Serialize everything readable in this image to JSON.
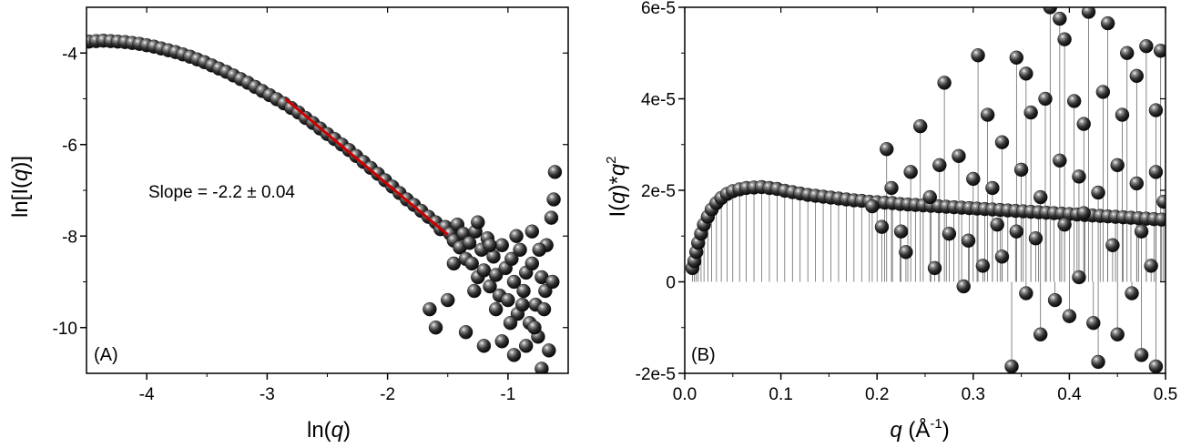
{
  "chart_data": [
    {
      "type": "scatter",
      "panel_label": "(A)",
      "xlabel_prefix": "ln(",
      "xlabel_var": "q",
      "xlabel_suffix": ")",
      "ylabel_prefix": "ln[I(",
      "ylabel_var": "q",
      "ylabel_suffix": ")]",
      "xlim": [
        -4.5,
        -0.5
      ],
      "ylim": [
        -11,
        -3
      ],
      "xticks": [
        -4,
        -3,
        -2,
        -1
      ],
      "xtick_labels": [
        "-4",
        "-3",
        "-2",
        "-1"
      ],
      "yticks": [
        -10,
        -8,
        -6,
        -4
      ],
      "ytick_labels": [
        "-10",
        "-8",
        "-6",
        "-4"
      ],
      "annotation": "Slope = -2.2 ± 0.04",
      "fit_line": {
        "slope": -2.2,
        "x": [
          -2.85,
          -1.5
        ],
        "y": [
          -5.0,
          -7.97
        ],
        "color": "#cc0000"
      },
      "marker_color": "#1a1a1a",
      "points": [
        [
          -4.48,
          -3.75
        ],
        [
          -4.42,
          -3.74
        ],
        [
          -4.36,
          -3.73
        ],
        [
          -4.3,
          -3.74
        ],
        [
          -4.24,
          -3.75
        ],
        [
          -4.18,
          -3.76
        ],
        [
          -4.12,
          -3.78
        ],
        [
          -4.06,
          -3.8
        ],
        [
          -4.0,
          -3.83
        ],
        [
          -3.94,
          -3.86
        ],
        [
          -3.88,
          -3.9
        ],
        [
          -3.82,
          -3.94
        ],
        [
          -3.76,
          -3.98
        ],
        [
          -3.7,
          -4.03
        ],
        [
          -3.64,
          -4.08
        ],
        [
          -3.58,
          -4.14
        ],
        [
          -3.52,
          -4.2
        ],
        [
          -3.46,
          -4.27
        ],
        [
          -3.4,
          -4.34
        ],
        [
          -3.34,
          -4.41
        ],
        [
          -3.28,
          -4.49
        ],
        [
          -3.22,
          -4.57
        ],
        [
          -3.16,
          -4.65
        ],
        [
          -3.1,
          -4.74
        ],
        [
          -3.04,
          -4.83
        ],
        [
          -2.98,
          -4.92
        ],
        [
          -2.92,
          -5.01
        ],
        [
          -2.86,
          -5.1
        ],
        [
          -2.8,
          -5.2
        ],
        [
          -2.74,
          -5.3
        ],
        [
          -2.68,
          -5.42
        ],
        [
          -2.62,
          -5.53
        ],
        [
          -2.56,
          -5.65
        ],
        [
          -2.5,
          -5.77
        ],
        [
          -2.44,
          -5.88
        ],
        [
          -2.38,
          -6.0
        ],
        [
          -2.32,
          -6.12
        ],
        [
          -2.26,
          -6.25
        ],
        [
          -2.2,
          -6.38
        ],
        [
          -2.14,
          -6.51
        ],
        [
          -2.08,
          -6.64
        ],
        [
          -2.02,
          -6.78
        ],
        [
          -1.96,
          -6.92
        ],
        [
          -1.9,
          -7.06
        ],
        [
          -1.84,
          -7.2
        ],
        [
          -1.78,
          -7.32
        ],
        [
          -1.72,
          -7.45
        ],
        [
          -1.66,
          -7.58
        ],
        [
          -1.6,
          -7.7
        ],
        [
          -1.56,
          -7.85
        ],
        [
          -1.52,
          -7.8
        ],
        [
          -1.48,
          -7.95
        ],
        [
          -1.45,
          -8.1
        ],
        [
          -1.42,
          -7.75
        ],
        [
          -1.4,
          -8.25
        ],
        [
          -1.37,
          -7.95
        ],
        [
          -1.35,
          -8.5
        ],
        [
          -1.32,
          -8.15
        ],
        [
          -1.3,
          -8.6
        ],
        [
          -1.27,
          -7.9
        ],
        [
          -1.25,
          -8.9
        ],
        [
          -1.22,
          -8.3
        ],
        [
          -1.2,
          -8.75
        ],
        [
          -1.17,
          -8.05
        ],
        [
          -1.15,
          -9.1
        ],
        [
          -1.12,
          -8.45
        ],
        [
          -1.1,
          -8.85
        ],
        [
          -1.07,
          -9.3
        ],
        [
          -1.05,
          -8.2
        ],
        [
          -1.02,
          -8.7
        ],
        [
          -1.0,
          -9.4
        ],
        [
          -0.97,
          -8.5
        ],
        [
          -0.95,
          -9.0
        ],
        [
          -0.92,
          -9.7
        ],
        [
          -0.9,
          -8.3
        ],
        [
          -0.87,
          -9.2
        ],
        [
          -0.85,
          -8.8
        ],
        [
          -0.82,
          -9.9
        ],
        [
          -0.8,
          -8.6
        ],
        [
          -0.77,
          -9.5
        ],
        [
          -0.75,
          -10.2
        ],
        [
          -0.72,
          -8.9
        ],
        [
          -0.7,
          -9.6
        ],
        [
          -0.68,
          -8.2
        ],
        [
          -0.66,
          -10.5
        ],
        [
          -0.64,
          -7.6
        ],
        [
          -0.62,
          -7.2
        ],
        [
          -0.61,
          -6.6
        ],
        [
          -1.6,
          -10.0
        ],
        [
          -1.5,
          -9.4
        ],
        [
          -1.35,
          -10.1
        ],
        [
          -1.2,
          -10.4
        ],
        [
          -1.05,
          -10.3
        ],
        [
          -0.95,
          -10.6
        ],
        [
          -0.85,
          -10.4
        ],
        [
          -0.72,
          -10.9
        ],
        [
          -1.65,
          -9.6
        ],
        [
          -1.45,
          -8.6
        ],
        [
          -1.28,
          -9.2
        ],
        [
          -1.1,
          -9.6
        ],
        [
          -0.98,
          -9.9
        ],
        [
          -0.88,
          -9.5
        ],
        [
          -0.78,
          -10.0
        ],
        [
          -0.69,
          -9.2
        ],
        [
          -1.25,
          -7.7
        ],
        [
          -1.15,
          -8.2
        ],
        [
          -0.93,
          -8.0
        ],
        [
          -0.8,
          -7.9
        ],
        [
          -0.74,
          -8.3
        ],
        [
          -0.63,
          -9.0
        ]
      ]
    },
    {
      "type": "scatter",
      "panel_label": "(B)",
      "xlabel_var": "q",
      "xlabel_unit_open": " (Å",
      "xlabel_unit_exp": "-1",
      "xlabel_unit_close": ")",
      "ylabel_prefix": "I(",
      "ylabel_var": "q",
      "ylabel_mid": ")*",
      "ylabel_var2": "q",
      "ylabel_exp": "2",
      "xlim": [
        0.0,
        0.5
      ],
      "ylim": [
        -2e-05,
        6e-05
      ],
      "xticks": [
        0.0,
        0.1,
        0.2,
        0.3,
        0.4,
        0.5
      ],
      "xtick_labels": [
        "0.0",
        "0.1",
        "0.2",
        "0.3",
        "0.4",
        "0.5"
      ],
      "yticks": [
        -2e-05,
        0.0,
        2e-05,
        4e-05,
        6e-05
      ],
      "ytick_labels": [
        "-2e-5",
        "0",
        "2e-5",
        "4e-5",
        "6e-5"
      ],
      "marker_color": "#1a1a1a",
      "points": [
        [
          0.008,
          3e-06
        ],
        [
          0.01,
          4.5e-06
        ],
        [
          0.012,
          6.5e-06
        ],
        [
          0.014,
          8.5e-06
        ],
        [
          0.017,
          1.05e-05
        ],
        [
          0.02,
          1.25e-05
        ],
        [
          0.024,
          1.42e-05
        ],
        [
          0.028,
          1.58e-05
        ],
        [
          0.033,
          1.72e-05
        ],
        [
          0.038,
          1.83e-05
        ],
        [
          0.044,
          1.92e-05
        ],
        [
          0.05,
          1.98e-05
        ],
        [
          0.057,
          2.02e-05
        ],
        [
          0.064,
          2.05e-05
        ],
        [
          0.072,
          2.06e-05
        ],
        [
          0.08,
          2.07e-05
        ],
        [
          0.088,
          2.05e-05
        ],
        [
          0.096,
          2.03e-05
        ],
        [
          0.104,
          1.99e-05
        ],
        [
          0.112,
          1.96e-05
        ],
        [
          0.12,
          1.93e-05
        ],
        [
          0.128,
          1.9e-05
        ],
        [
          0.136,
          1.88e-05
        ],
        [
          0.144,
          1.86e-05
        ],
        [
          0.152,
          1.84e-05
        ],
        [
          0.16,
          1.82e-05
        ],
        [
          0.168,
          1.8e-05
        ],
        [
          0.176,
          1.78e-05
        ],
        [
          0.184,
          1.77e-05
        ],
        [
          0.192,
          1.75e-05
        ],
        [
          0.2,
          1.74e-05
        ],
        [
          0.208,
          1.73e-05
        ],
        [
          0.216,
          1.72e-05
        ],
        [
          0.224,
          1.7e-05
        ],
        [
          0.232,
          1.69e-05
        ],
        [
          0.24,
          1.68e-05
        ],
        [
          0.248,
          1.67e-05
        ],
        [
          0.256,
          1.66e-05
        ],
        [
          0.264,
          1.65e-05
        ],
        [
          0.272,
          1.64e-05
        ],
        [
          0.28,
          1.63e-05
        ],
        [
          0.288,
          1.62e-05
        ],
        [
          0.296,
          1.61e-05
        ],
        [
          0.304,
          1.6e-05
        ],
        [
          0.312,
          1.59e-05
        ],
        [
          0.32,
          1.58e-05
        ],
        [
          0.328,
          1.57e-05
        ],
        [
          0.336,
          1.56e-05
        ],
        [
          0.344,
          1.55e-05
        ],
        [
          0.352,
          1.54e-05
        ],
        [
          0.36,
          1.53e-05
        ],
        [
          0.368,
          1.52e-05
        ],
        [
          0.376,
          1.51e-05
        ],
        [
          0.384,
          1.5e-05
        ],
        [
          0.392,
          1.49e-05
        ],
        [
          0.4,
          1.48e-05
        ],
        [
          0.408,
          1.47e-05
        ],
        [
          0.416,
          1.46e-05
        ],
        [
          0.424,
          1.45e-05
        ],
        [
          0.432,
          1.44e-05
        ],
        [
          0.44,
          1.43e-05
        ],
        [
          0.448,
          1.42e-05
        ],
        [
          0.456,
          1.41e-05
        ],
        [
          0.464,
          1.4e-05
        ],
        [
          0.472,
          1.39e-05
        ],
        [
          0.48,
          1.38e-05
        ],
        [
          0.488,
          1.37e-05
        ],
        [
          0.496,
          1.36e-05
        ],
        [
          0.21,
          2.9e-05
        ],
        [
          0.245,
          3.4e-05
        ],
        [
          0.27,
          4.35e-05
        ],
        [
          0.305,
          4.95e-05
        ],
        [
          0.345,
          4.9e-05
        ],
        [
          0.355,
          4.55e-05
        ],
        [
          0.38,
          6e-05
        ],
        [
          0.39,
          5.75e-05
        ],
        [
          0.395,
          5.3e-05
        ],
        [
          0.42,
          5.9e-05
        ],
        [
          0.44,
          5.65e-05
        ],
        [
          0.46,
          5e-05
        ],
        [
          0.48,
          5.15e-05
        ],
        [
          0.495,
          5.05e-05
        ],
        [
          0.34,
          -1.85e-05
        ],
        [
          0.37,
          -1.15e-05
        ],
        [
          0.4,
          -7.5e-06
        ],
        [
          0.43,
          -1.75e-05
        ],
        [
          0.45,
          -1.15e-05
        ],
        [
          0.475,
          -1.6e-05
        ],
        [
          0.49,
          -1.85e-05
        ],
        [
          0.23,
          6.5e-06
        ],
        [
          0.26,
          3e-06
        ],
        [
          0.29,
          -1e-06
        ],
        [
          0.31,
          3.5e-06
        ],
        [
          0.33,
          5.5e-06
        ],
        [
          0.355,
          -2.5e-06
        ],
        [
          0.385,
          -4e-06
        ],
        [
          0.41,
          1e-06
        ],
        [
          0.425,
          -9e-06
        ],
        [
          0.465,
          -2.5e-06
        ],
        [
          0.485,
          3.5e-06
        ],
        [
          0.205,
          1.2e-05
        ],
        [
          0.225,
          1.1e-05
        ],
        [
          0.265,
          2.55e-05
        ],
        [
          0.285,
          2.75e-05
        ],
        [
          0.315,
          3.65e-05
        ],
        [
          0.33,
          3.05e-05
        ],
        [
          0.36,
          3.7e-05
        ],
        [
          0.375,
          4e-05
        ],
        [
          0.405,
          3.95e-05
        ],
        [
          0.415,
          3.45e-05
        ],
        [
          0.435,
          4.15e-05
        ],
        [
          0.455,
          3.65e-05
        ],
        [
          0.47,
          4.5e-05
        ],
        [
          0.49,
          3.75e-05
        ],
        [
          0.3,
          2.25e-05
        ],
        [
          0.32,
          2.05e-05
        ],
        [
          0.35,
          2.45e-05
        ],
        [
          0.37,
          1.85e-05
        ],
        [
          0.39,
          2.65e-05
        ],
        [
          0.41,
          2.3e-05
        ],
        [
          0.43,
          1.95e-05
        ],
        [
          0.45,
          2.55e-05
        ],
        [
          0.47,
          2.15e-05
        ],
        [
          0.49,
          2.4e-05
        ],
        [
          0.195,
          1.65e-05
        ],
        [
          0.215,
          2.05e-05
        ],
        [
          0.235,
          2.4e-05
        ],
        [
          0.255,
          1.85e-05
        ],
        [
          0.275,
          1.05e-05
        ],
        [
          0.295,
          9e-06
        ],
        [
          0.325,
          1.25e-05
        ],
        [
          0.345,
          1.1e-05
        ],
        [
          0.365,
          9.5e-06
        ],
        [
          0.395,
          1.25e-05
        ],
        [
          0.415,
          1.5e-05
        ],
        [
          0.445,
          8e-06
        ],
        [
          0.475,
          1.1e-05
        ],
        [
          0.498,
          1.75e-05
        ]
      ]
    }
  ]
}
